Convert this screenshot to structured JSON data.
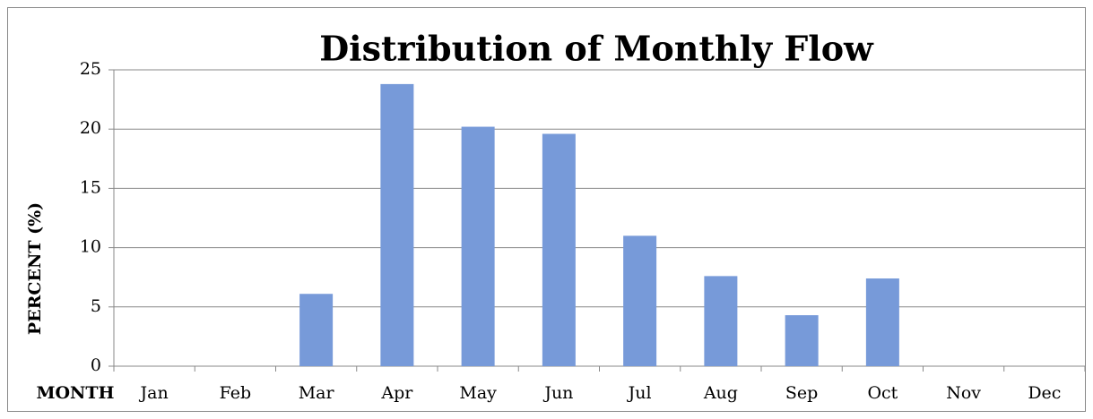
{
  "chart_data": {
    "type": "bar",
    "title": "Distribution of Monthly Flow",
    "x_label": "MONTH",
    "y_label": "PERCENT (%)",
    "categories": [
      "Jan",
      "Feb",
      "Mar",
      "Apr",
      "May",
      "Jun",
      "Jul",
      "Aug",
      "Sep",
      "Oct",
      "Nov",
      "Dec"
    ],
    "values": [
      0,
      0,
      6.1,
      23.8,
      20.2,
      19.6,
      11.0,
      7.6,
      4.3,
      7.4,
      0,
      0
    ],
    "color": "#779ad9",
    "ylim": [
      0,
      25
    ],
    "yticks": [
      0,
      5,
      10,
      15,
      20,
      25
    ],
    "grid": true
  }
}
